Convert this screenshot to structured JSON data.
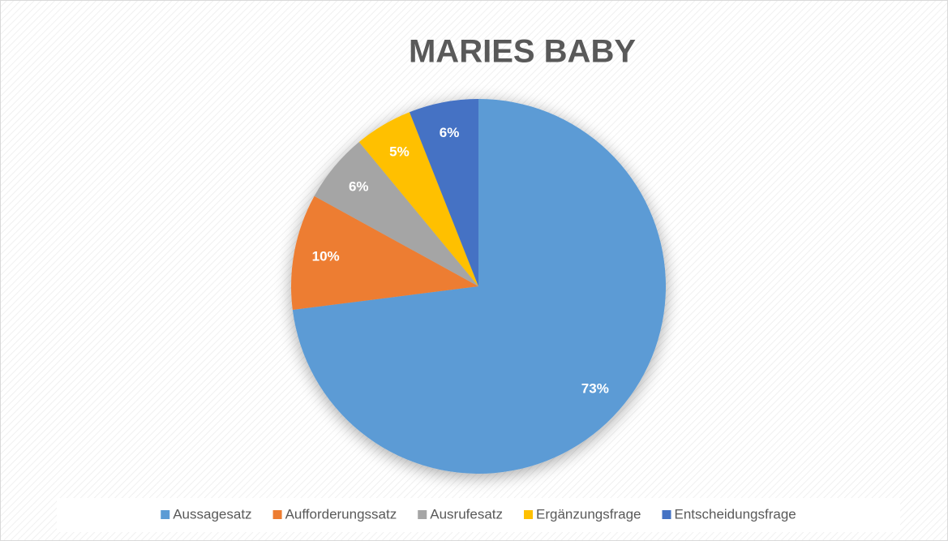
{
  "chart_data": {
    "type": "pie",
    "title": "MARIES BABY",
    "categories": [
      "Aussagesatz",
      "Aufforderungssatz",
      "Ausrufesatz",
      "Ergänzungsfrage",
      "Entscheidungsfrage"
    ],
    "values": [
      73,
      10,
      6,
      5,
      6
    ],
    "value_labels": [
      "73%",
      "10%",
      "6%",
      "5%",
      "6%"
    ],
    "colors": [
      "#5b9bd5",
      "#ed7d31",
      "#a5a5a5",
      "#ffc000",
      "#4472c4"
    ],
    "legend": "bottom"
  }
}
